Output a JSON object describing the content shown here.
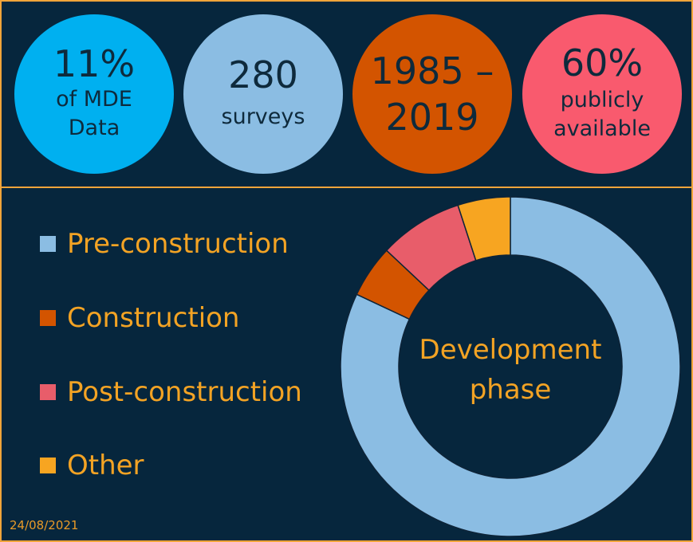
{
  "stats": [
    {
      "main": "11%",
      "sub": "of MDE Data",
      "color": "#00b0f0"
    },
    {
      "main": "280",
      "sub": "surveys",
      "color": "#8bbde3"
    },
    {
      "main": "1985 –",
      "sub": "2019",
      "color": "#d35400"
    },
    {
      "main": "60%",
      "sub": "publicly available",
      "color": "#f95a6e"
    }
  ],
  "chart_data": {
    "type": "pie",
    "center_label": "Development phase",
    "categories": [
      "Pre-construction",
      "Construction",
      "Post-construction",
      "Other"
    ],
    "values": [
      82,
      5,
      8,
      5
    ],
    "colors": [
      "#8bbde3",
      "#d35400",
      "#e85d6a",
      "#f7a521"
    ],
    "legend": "left"
  },
  "footer": {
    "date": "24/08/2021"
  }
}
